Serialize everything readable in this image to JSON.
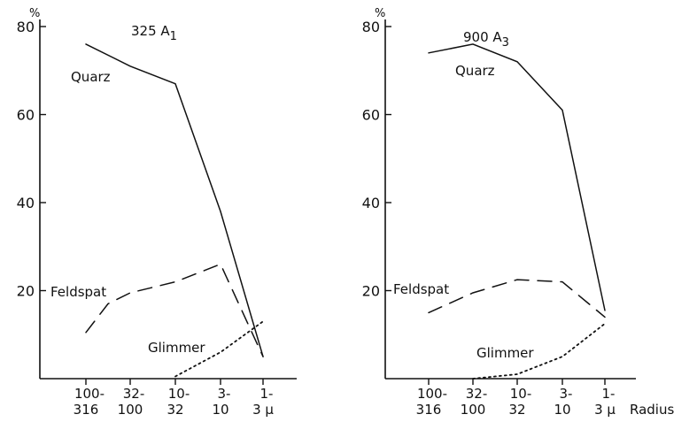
{
  "chart_data": [
    {
      "type": "line",
      "title": "325 A",
      "title_sub": "1",
      "y_unit": "%",
      "ylim": [
        0,
        80
      ],
      "yticks": [
        "20",
        "40",
        "60",
        "80"
      ],
      "categories": [
        [
          "100-",
          "316"
        ],
        [
          "32-",
          "100"
        ],
        [
          "10-",
          "32"
        ],
        [
          "3-",
          "10"
        ],
        [
          "1-",
          "3 µ"
        ]
      ],
      "xlabel": "",
      "series": [
        {
          "name": "Quarz",
          "style": "solid",
          "x": [
            0,
            1,
            2,
            3,
            4
          ],
          "values": [
            76,
            71,
            67,
            38,
            5
          ]
        },
        {
          "name": "Feldspat",
          "style": "dashed",
          "x": [
            0,
            0.5,
            1,
            2,
            3,
            4
          ],
          "values": [
            10.5,
            17,
            19.5,
            22,
            26,
            5
          ]
        },
        {
          "name": "Glimmer",
          "style": "dotted",
          "x": [
            2,
            3,
            4
          ],
          "values": [
            0.5,
            6,
            13
          ]
        }
      ],
      "grid": false
    },
    {
      "type": "line",
      "title": "900 A",
      "title_sub": "3",
      "y_unit": "%",
      "ylim": [
        0,
        80
      ],
      "yticks": [
        "20",
        "40",
        "60",
        "80"
      ],
      "categories": [
        [
          "100-",
          "316"
        ],
        [
          "32-",
          "100"
        ],
        [
          "10-",
          "32"
        ],
        [
          "3-",
          "10"
        ],
        [
          "1-",
          "3 µ"
        ]
      ],
      "xlabel": "Radius",
      "series": [
        {
          "name": "Quarz",
          "style": "solid",
          "x": [
            0,
            1,
            2,
            3,
            4
          ],
          "values": [
            74,
            76,
            72,
            61,
            15.5
          ]
        },
        {
          "name": "Feldspat",
          "style": "dashed",
          "x": [
            0,
            1,
            2,
            3,
            4
          ],
          "values": [
            15,
            19.5,
            22.5,
            22,
            14
          ]
        },
        {
          "name": "Glimmer",
          "style": "dotted",
          "x": [
            1,
            2,
            3,
            4
          ],
          "values": [
            0,
            1,
            5,
            12.5
          ]
        }
      ],
      "grid": false
    }
  ]
}
